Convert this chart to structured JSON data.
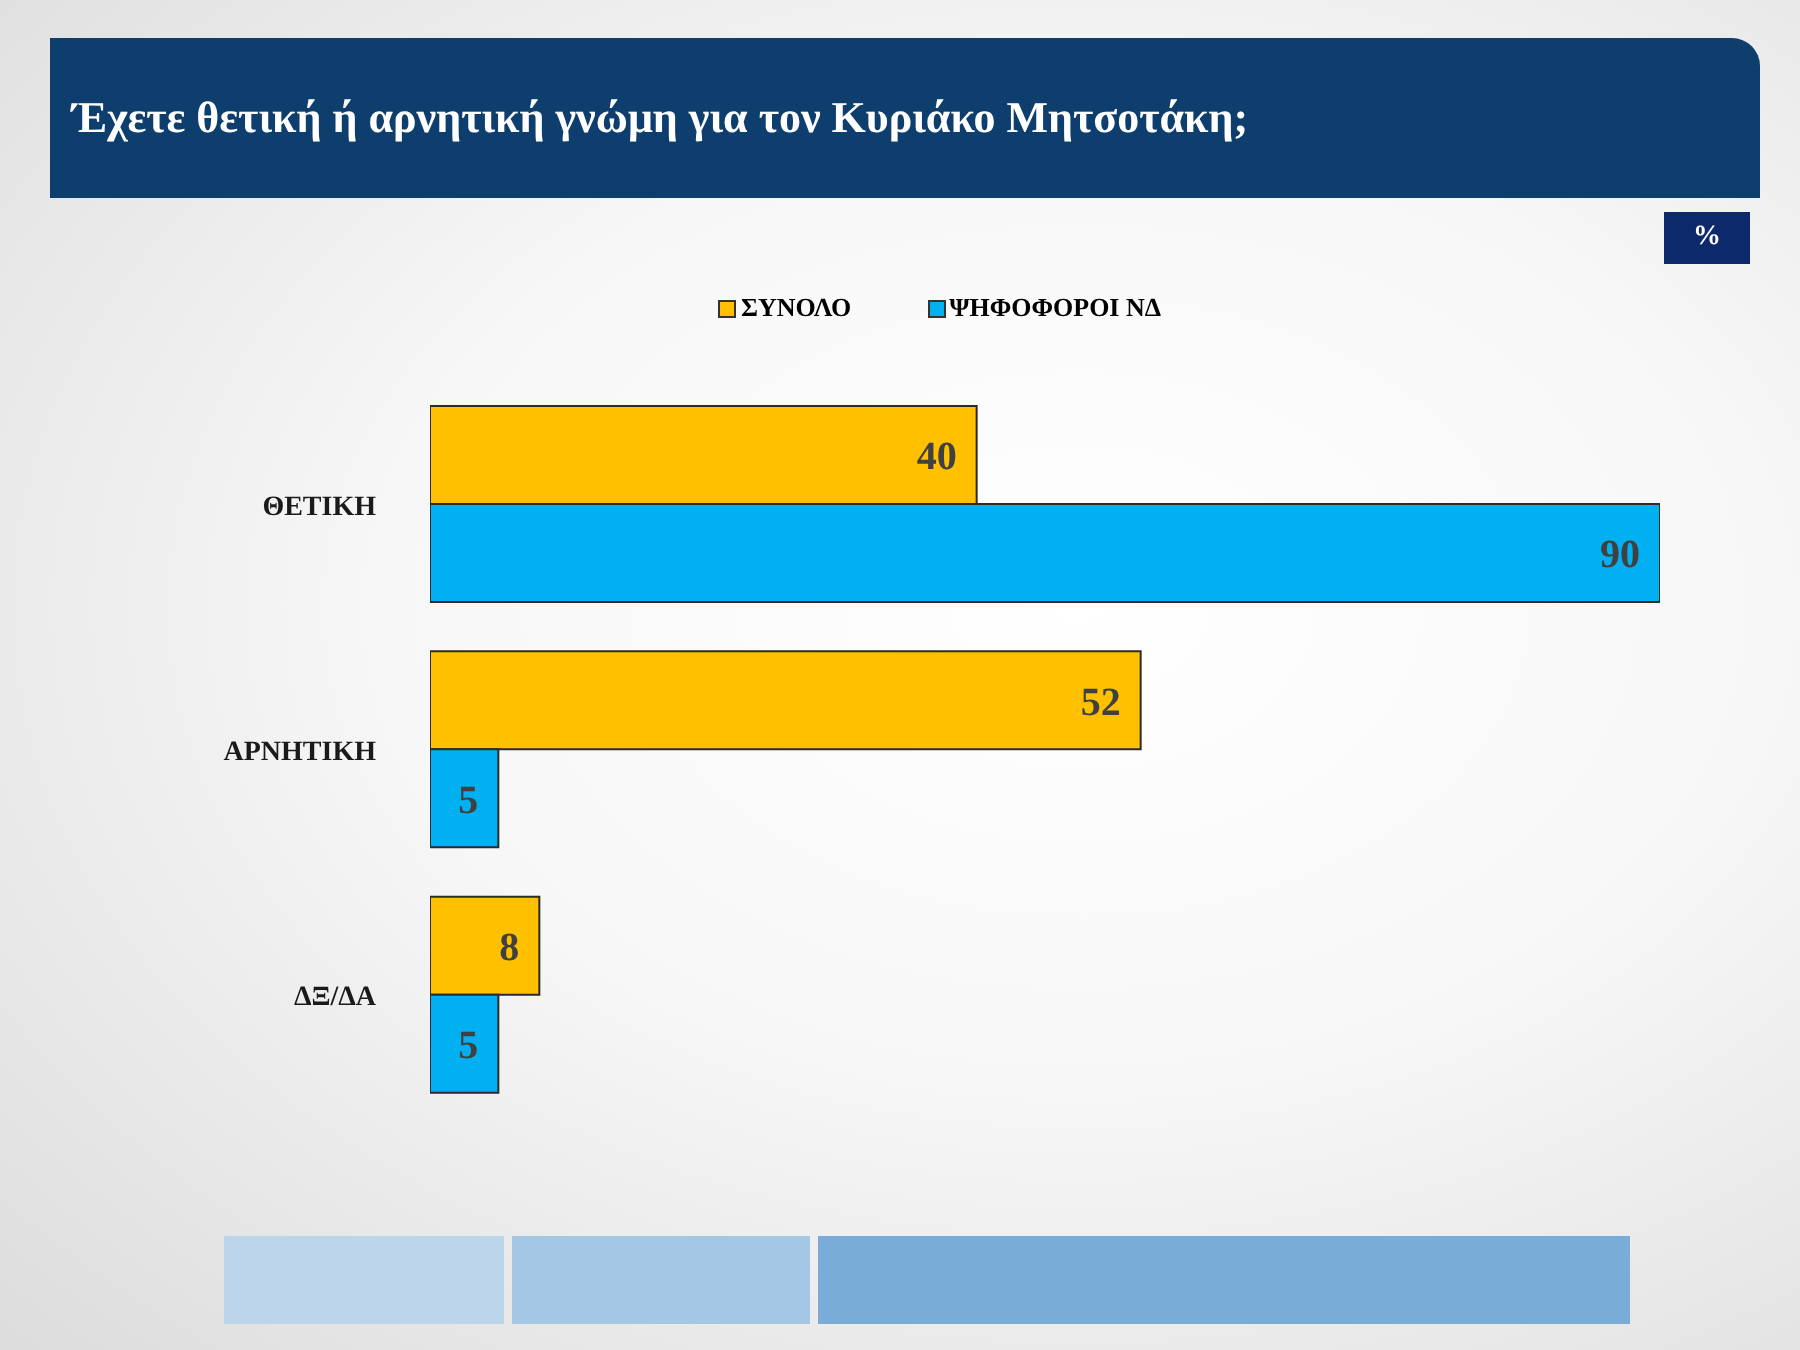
{
  "chart_data": {
    "type": "bar",
    "orientation": "horizontal",
    "title": "Έχετε θετική ή αρνητική γνώμη για τον Κυριάκο Μητσοτάκη;",
    "annotations": [
      "%"
    ],
    "categories": [
      "ΘΕΤΙΚΗ",
      "ΑΡΝΗΤΙΚΗ",
      "ΔΞ/ΔΑ"
    ],
    "series": [
      {
        "name": "ΣΥΝΟΛΟ",
        "color": "#ffc000",
        "values": [
          40,
          52,
          8
        ]
      },
      {
        "name": "ΨΗΦΟΦΟΡΟΙ ΝΔ",
        "color": "#00b0f0",
        "values": [
          90,
          5,
          5
        ]
      }
    ],
    "data_labels": true,
    "legend": "top",
    "tick_labels": "y"
  }
}
